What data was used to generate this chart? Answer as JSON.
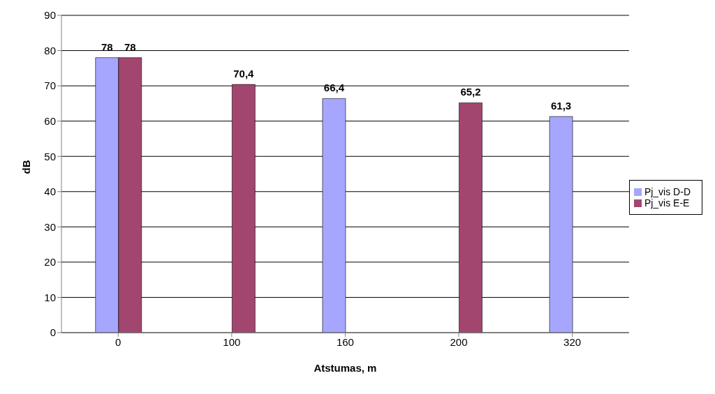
{
  "chart_data": {
    "type": "bar",
    "xlabel": "Atstumas, m",
    "ylabel": "dB",
    "categories": [
      "0",
      "100",
      "160",
      "200",
      "320"
    ],
    "series": [
      {
        "name": "Pj_vis D-D",
        "color": "#a6a6ff",
        "values": [
          78,
          null,
          66.4,
          null,
          61.3
        ],
        "value_labels": [
          "78",
          null,
          "66,4",
          null,
          "61,3"
        ]
      },
      {
        "name": "Pj_vis E-E",
        "color": "#a3466f",
        "values": [
          78,
          70.4,
          null,
          65.2,
          null
        ],
        "value_labels": [
          "78",
          "70,4",
          null,
          "65,2",
          null
        ]
      }
    ],
    "ylim": [
      0,
      90
    ],
    "yticks": [
      0,
      10,
      20,
      30,
      40,
      50,
      60,
      70,
      80,
      90
    ],
    "grid": "y",
    "legend": "right"
  }
}
